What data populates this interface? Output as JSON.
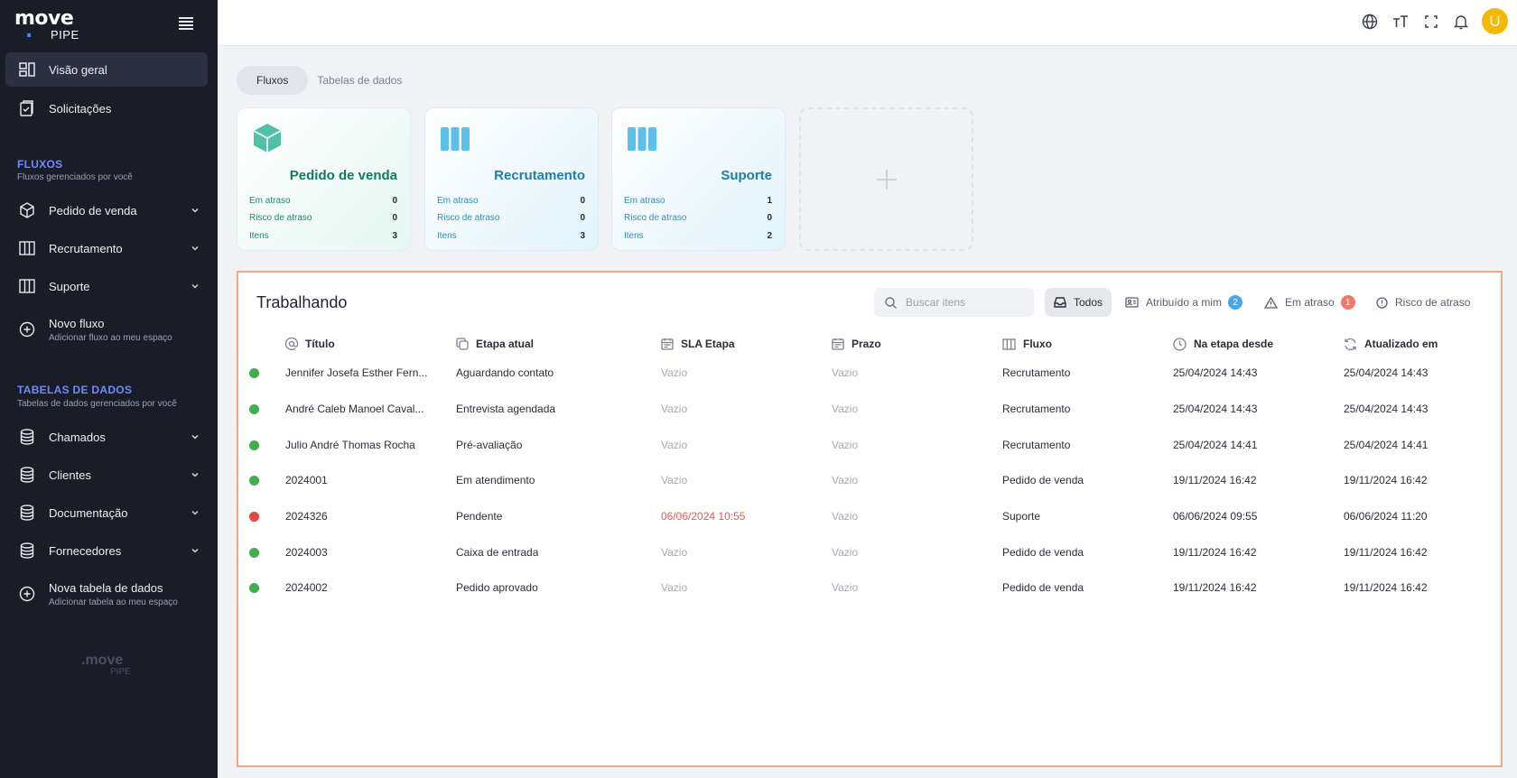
{
  "brand": {
    "logo_main": "move",
    "logo_sub": "PIPE"
  },
  "sidebar": {
    "overview": "Visão geral",
    "requests": "Solicitações",
    "flows_title": "FLUXOS",
    "flows_sub": "Fluxos gerenciados por você",
    "flows": [
      "Pedido de venda",
      "Recrutamento",
      "Suporte"
    ],
    "new_flow": "Novo fluxo",
    "new_flow_sub": "Adicionar fluxo ao meu espaço",
    "tables_title": "TABELAS DE DADOS",
    "tables_sub": "Tabelas de dados gerenciados por você",
    "tables": [
      "Chamados",
      "Clientes",
      "Documentação",
      "Fornecedores"
    ],
    "new_table": "Nova tabela de dados",
    "new_table_sub": "Adicionar tabela ao meu espaço",
    "footer_main": ".move",
    "footer_sub": "PIPE"
  },
  "topbar": {
    "avatar_letter": "U"
  },
  "tabs": [
    "Fluxos",
    "Tabelas de dados"
  ],
  "cards": [
    {
      "title": "Pedido de venda",
      "late_label": "Em atraso",
      "late": "0",
      "risk_label": "Risco de atraso",
      "risk": "0",
      "items_label": "Itens",
      "items": "3",
      "color": "#4fc1a8"
    },
    {
      "title": "Recrutamento",
      "late_label": "Em atraso",
      "late": "0",
      "risk_label": "Risco de atraso",
      "risk": "0",
      "items_label": "Itens",
      "items": "3",
      "color": "#5cc0ea"
    },
    {
      "title": "Suporte",
      "late_label": "Em atraso",
      "late": "1",
      "risk_label": "Risco de atraso",
      "risk": "0",
      "items_label": "Itens",
      "items": "2",
      "color": "#5cc0ea"
    }
  ],
  "panel": {
    "title": "Trabalhando",
    "search_placeholder": "Buscar itens",
    "filters": {
      "all": "Todos",
      "assigned": "Atribuído a mim",
      "assigned_count": "2",
      "late": "Em atraso",
      "late_count": "1",
      "risk": "Risco de atraso"
    },
    "columns": [
      "Título",
      "Etapa atual",
      "SLA Etapa",
      "Prazo",
      "Fluxo",
      "Na etapa desde",
      "Atualizado em"
    ],
    "rows": [
      {
        "status": "green",
        "title": "Jennifer Josefa Esther Fern...",
        "stage": "Aguardando contato",
        "sla": "Vazio",
        "deadline": "Vazio",
        "flow": "Recrutamento",
        "since": "25/04/2024 14:43",
        "updated": "25/04/2024 14:43"
      },
      {
        "status": "green",
        "title": "André Caleb Manoel Caval...",
        "stage": "Entrevista agendada",
        "sla": "Vazio",
        "deadline": "Vazio",
        "flow": "Recrutamento",
        "since": "25/04/2024 14:43",
        "updated": "25/04/2024 14:43"
      },
      {
        "status": "green",
        "title": "Julio André Thomas Rocha",
        "stage": "Pré-avaliação",
        "sla": "Vazio",
        "deadline": "Vazio",
        "flow": "Recrutamento",
        "since": "25/04/2024 14:41",
        "updated": "25/04/2024 14:41"
      },
      {
        "status": "green",
        "title": "2024001",
        "stage": "Em atendimento",
        "sla": "Vazio",
        "deadline": "Vazio",
        "flow": "Pedido de venda",
        "since": "19/11/2024 16:42",
        "updated": "19/11/2024 16:42"
      },
      {
        "status": "red",
        "title": "2024326",
        "stage": "Pendente",
        "sla": "06/06/2024 10:55",
        "deadline": "Vazio",
        "flow": "Suporte",
        "since": "06/06/2024 09:55",
        "updated": "06/06/2024 11:20"
      },
      {
        "status": "green",
        "title": "2024003",
        "stage": "Caixa de entrada",
        "sla": "Vazio",
        "deadline": "Vazio",
        "flow": "Pedido de venda",
        "since": "19/11/2024 16:42",
        "updated": "19/11/2024 16:42"
      },
      {
        "status": "green",
        "title": "2024002",
        "stage": "Pedido aprovado",
        "sla": "Vazio",
        "deadline": "Vazio",
        "flow": "Pedido de venda",
        "since": "19/11/2024 16:42",
        "updated": "19/11/2024 16:42"
      }
    ]
  },
  "colors": {
    "status_green": "#3fae4f",
    "status_red": "#e5463f",
    "badge_blue": "#4aa6e8",
    "badge_red": "#f07a6e",
    "accent": "#6b8cff"
  }
}
